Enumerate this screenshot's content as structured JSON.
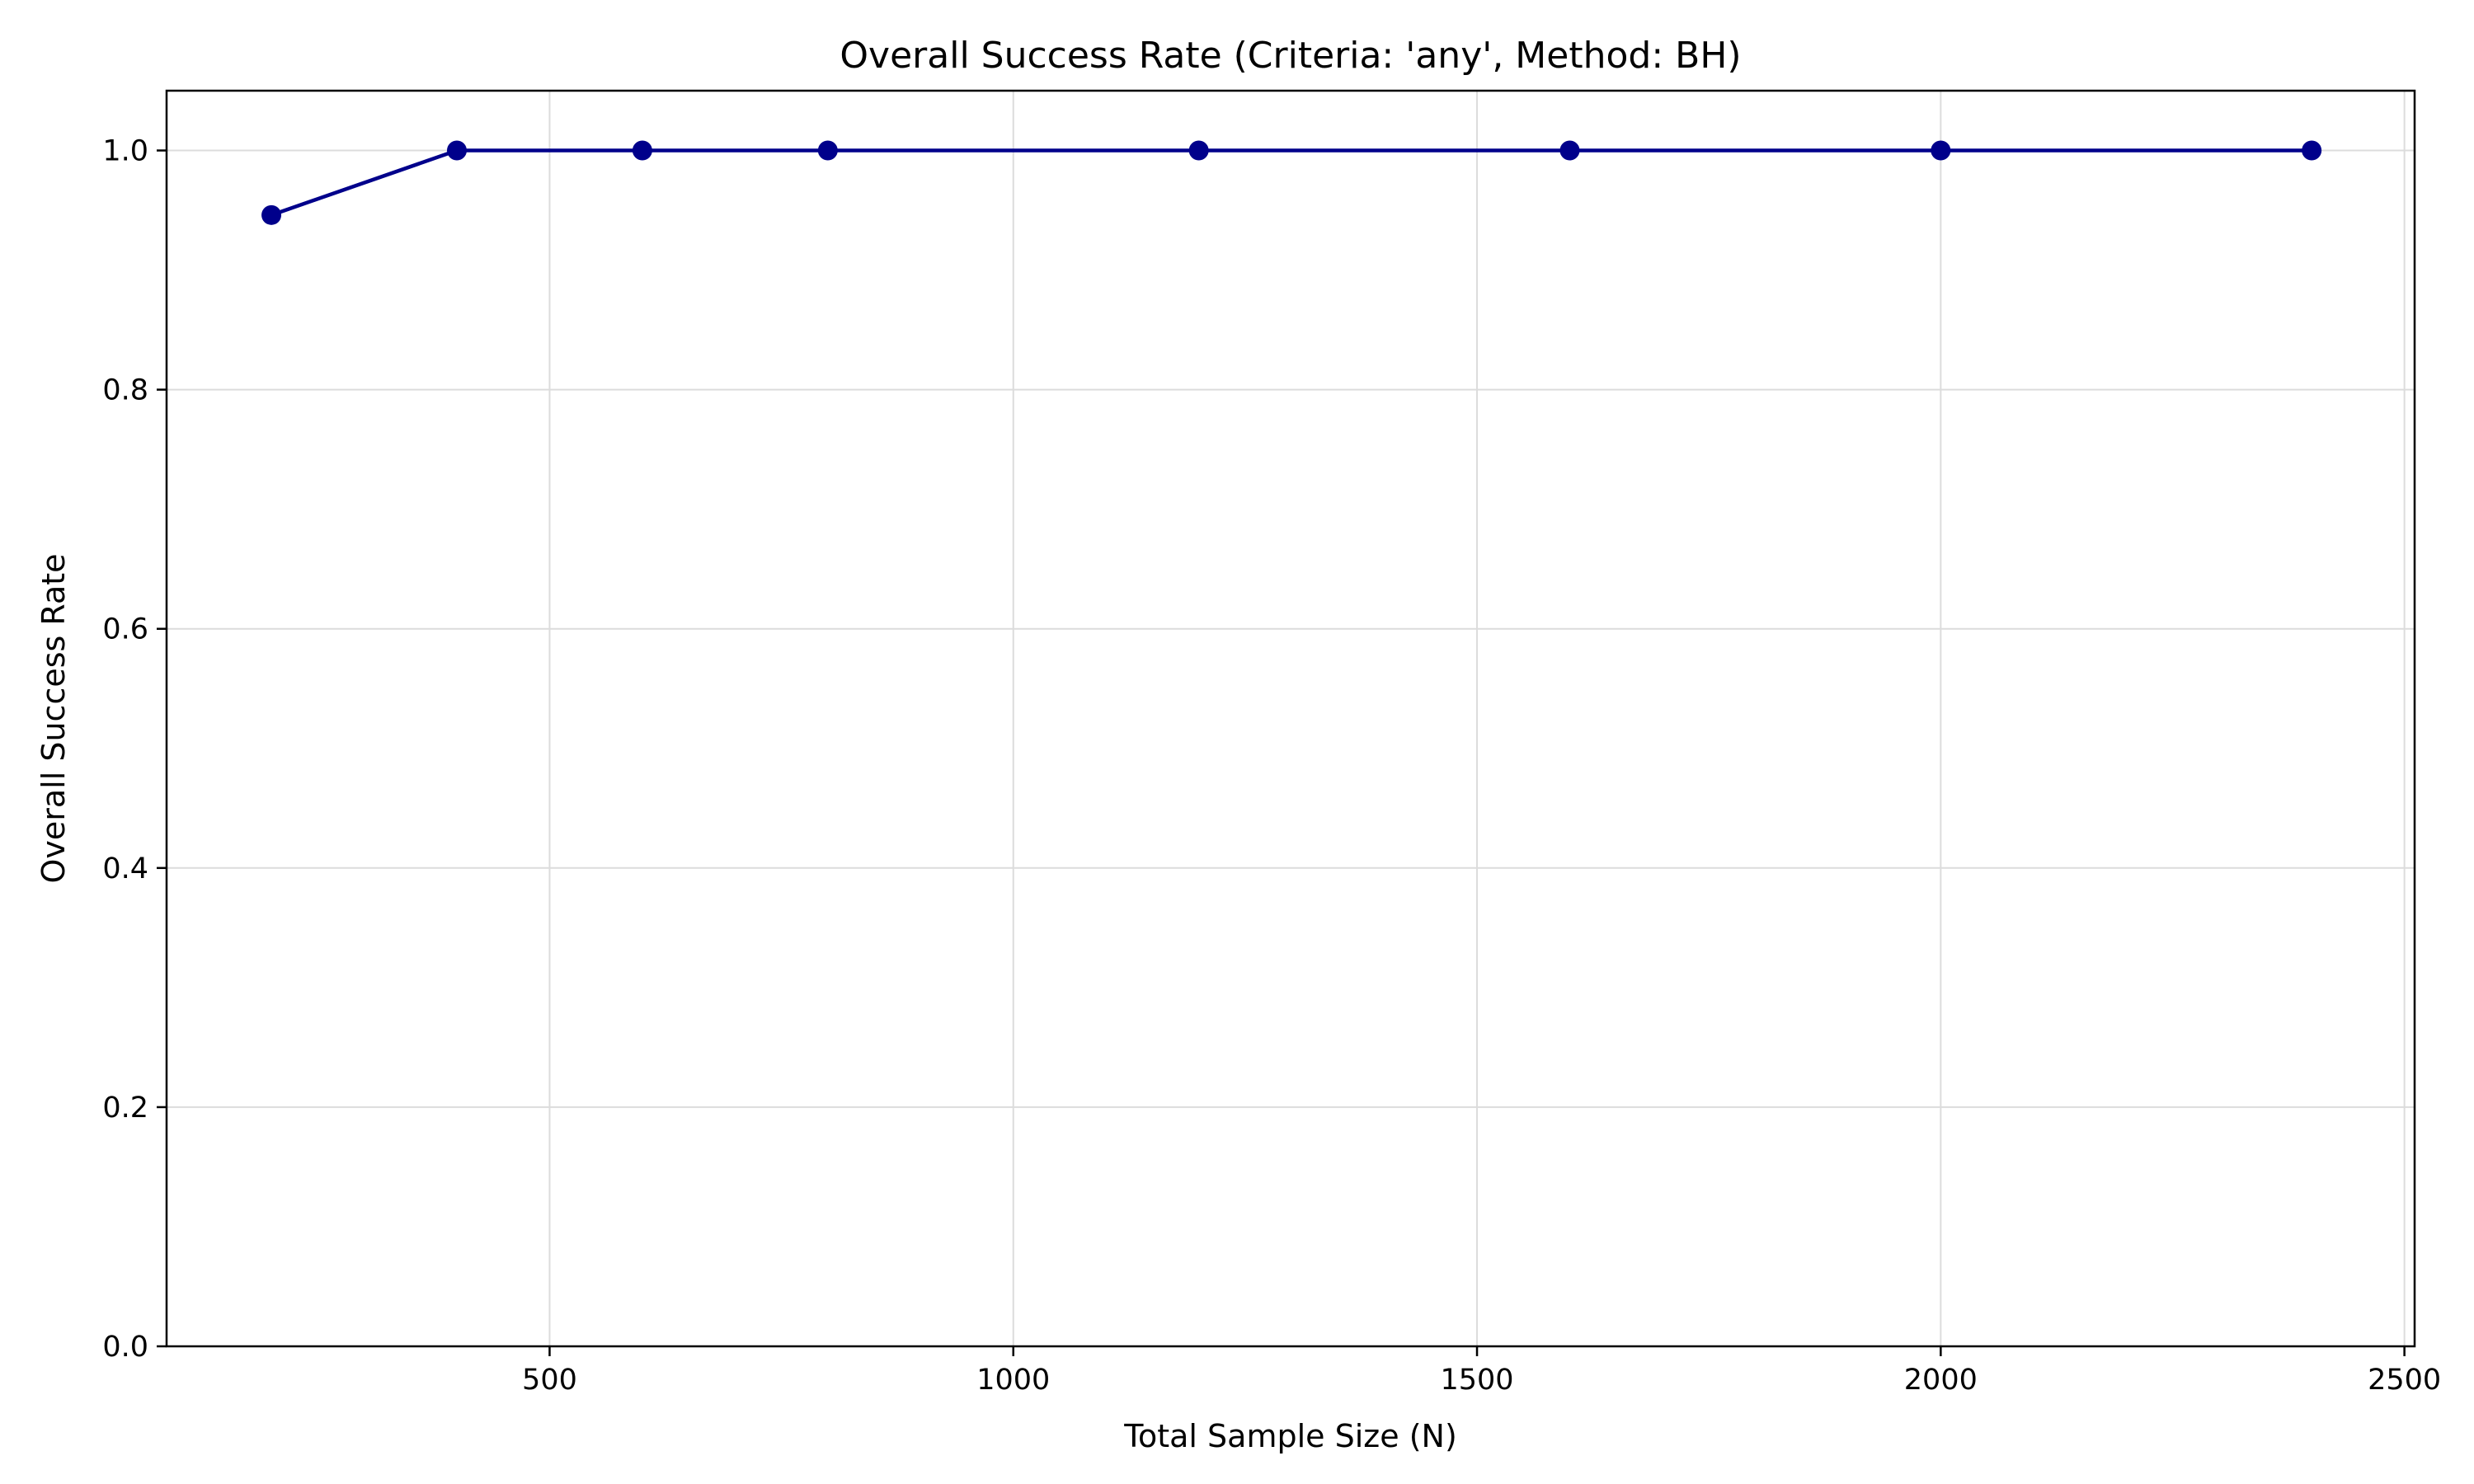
{
  "chart_data": {
    "type": "line",
    "title": "Overall Success Rate (Criteria: 'any', Method: BH)",
    "xlabel": "Total Sample Size (N)",
    "ylabel": "Overall Success Rate",
    "xlim": [
      87,
      2511
    ],
    "ylim": [
      0.0,
      1.05
    ],
    "xticks": [
      500,
      1000,
      1500,
      2000,
      2500
    ],
    "xtick_labels": [
      "500",
      "1000",
      "1500",
      "2000",
      "2500"
    ],
    "yticks": [
      0.0,
      0.2,
      0.4,
      0.6,
      0.8,
      1.0
    ],
    "ytick_labels": [
      "0.0",
      "0.2",
      "0.4",
      "0.6",
      "0.8",
      "1.0"
    ],
    "grid": true,
    "series": [
      {
        "color": "#00008b",
        "x": [
          200,
          400,
          600,
          800,
          1200,
          1600,
          2000,
          2400
        ],
        "y": [
          0.946,
          1.0,
          1.0,
          1.0,
          1.0,
          1.0,
          1.0,
          1.0
        ]
      }
    ]
  }
}
